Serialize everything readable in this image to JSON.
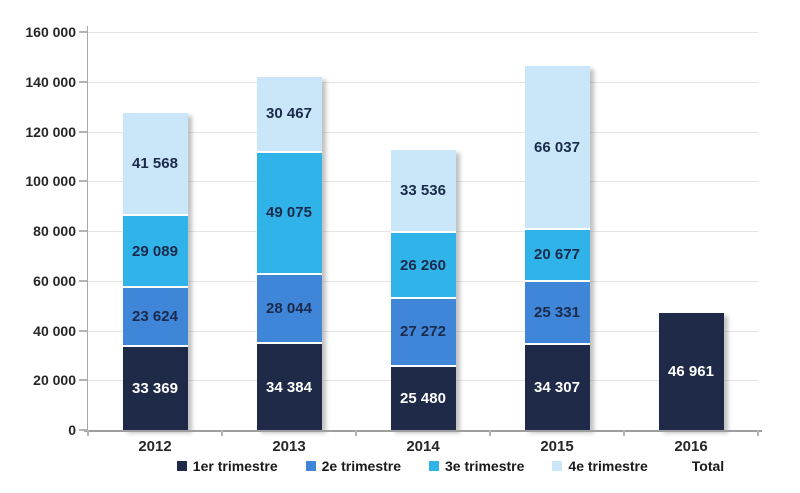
{
  "chart_data": {
    "type": "bar",
    "stacked": true,
    "title": "",
    "xlabel": "",
    "ylabel": "",
    "grid": true,
    "legend_position": "bottom",
    "ylim": [
      0,
      160000
    ],
    "categories": [
      "2012",
      "2013",
      "2014",
      "2015",
      "2016"
    ],
    "series": [
      {
        "name": "1er trimestre",
        "color": "#1e2a47",
        "label_color": "#ffffff",
        "legend_swatch": "#1e2a47",
        "values": [
          33369,
          34384,
          25480,
          34307,
          null
        ],
        "labels": [
          "33 369",
          "34 384",
          "25 480",
          "34 307",
          null
        ]
      },
      {
        "name": "2e trimestre",
        "color": "#3f86d9",
        "label_color": "#1b2a4a",
        "legend_swatch": "#3f86d9",
        "values": [
          23624,
          28044,
          27272,
          25331,
          null
        ],
        "labels": [
          "23 624",
          "28 044",
          "27 272",
          "25 331",
          null
        ]
      },
      {
        "name": "3e trimestre",
        "color": "#2fb3e9",
        "label_color": "#1b2a4a",
        "legend_swatch": "#2fb3e9",
        "values": [
          29089,
          49075,
          26260,
          20677,
          null
        ],
        "labels": [
          "29 089",
          "49 075",
          "26 260",
          "20 677",
          null
        ]
      },
      {
        "name": "4e trimestre",
        "color": "#c9e7f9",
        "label_color": "#1b2a4a",
        "legend_swatch": "#c9e7f9",
        "values": [
          41568,
          30467,
          33536,
          66037,
          null
        ],
        "labels": [
          "41 568",
          "30 467",
          "33 536",
          "66 037",
          null
        ]
      },
      {
        "name": "Total",
        "color": "#1e2a47",
        "label_color": "#ffffff",
        "legend_swatch": "transparent",
        "values": [
          null,
          null,
          null,
          null,
          46961
        ],
        "labels": [
          null,
          null,
          null,
          null,
          "46 961"
        ]
      }
    ],
    "y_ticks": [
      {
        "value": 0,
        "label": "0"
      },
      {
        "value": 20000,
        "label": "20 000"
      },
      {
        "value": 40000,
        "label": "40 000"
      },
      {
        "value": 60000,
        "label": "60 000"
      },
      {
        "value": 80000,
        "label": "80 000"
      },
      {
        "value": 100000,
        "label": "100 000"
      },
      {
        "value": 120000,
        "label": "120 000"
      },
      {
        "value": 140000,
        "label": "140 000"
      },
      {
        "value": 160000,
        "label": "160 000"
      }
    ]
  }
}
